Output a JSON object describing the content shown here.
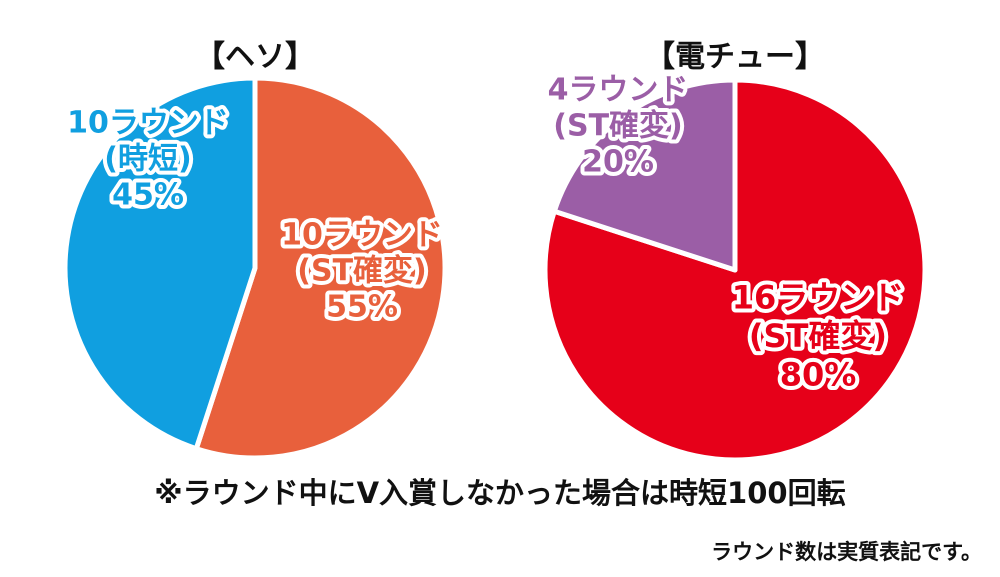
{
  "chart_data": [
    {
      "type": "pie",
      "title": "【ヘソ】",
      "slices": [
        {
          "lines": [
            "10ラウンド",
            "(ST確変)",
            "55%"
          ],
          "value": 55,
          "color": "#e8603c"
        },
        {
          "lines": [
            "10ラウンド",
            "(時短)",
            "45%"
          ],
          "value": 45,
          "color": "#109fe0"
        }
      ]
    },
    {
      "type": "pie",
      "title": "【電チュー】",
      "slices": [
        {
          "lines": [
            "16ラウンド",
            "(ST確変)",
            "80%"
          ],
          "value": 80,
          "color": "#e60019"
        },
        {
          "lines": [
            "4ラウンド",
            "(ST確変)",
            "20%"
          ],
          "value": 20,
          "color": "#9b5ea6"
        }
      ]
    }
  ],
  "notes": {
    "main": "※ラウンド中にV入賞しなかった場合は時短100回転",
    "footnote": "ラウンド数は実質表記です。"
  }
}
